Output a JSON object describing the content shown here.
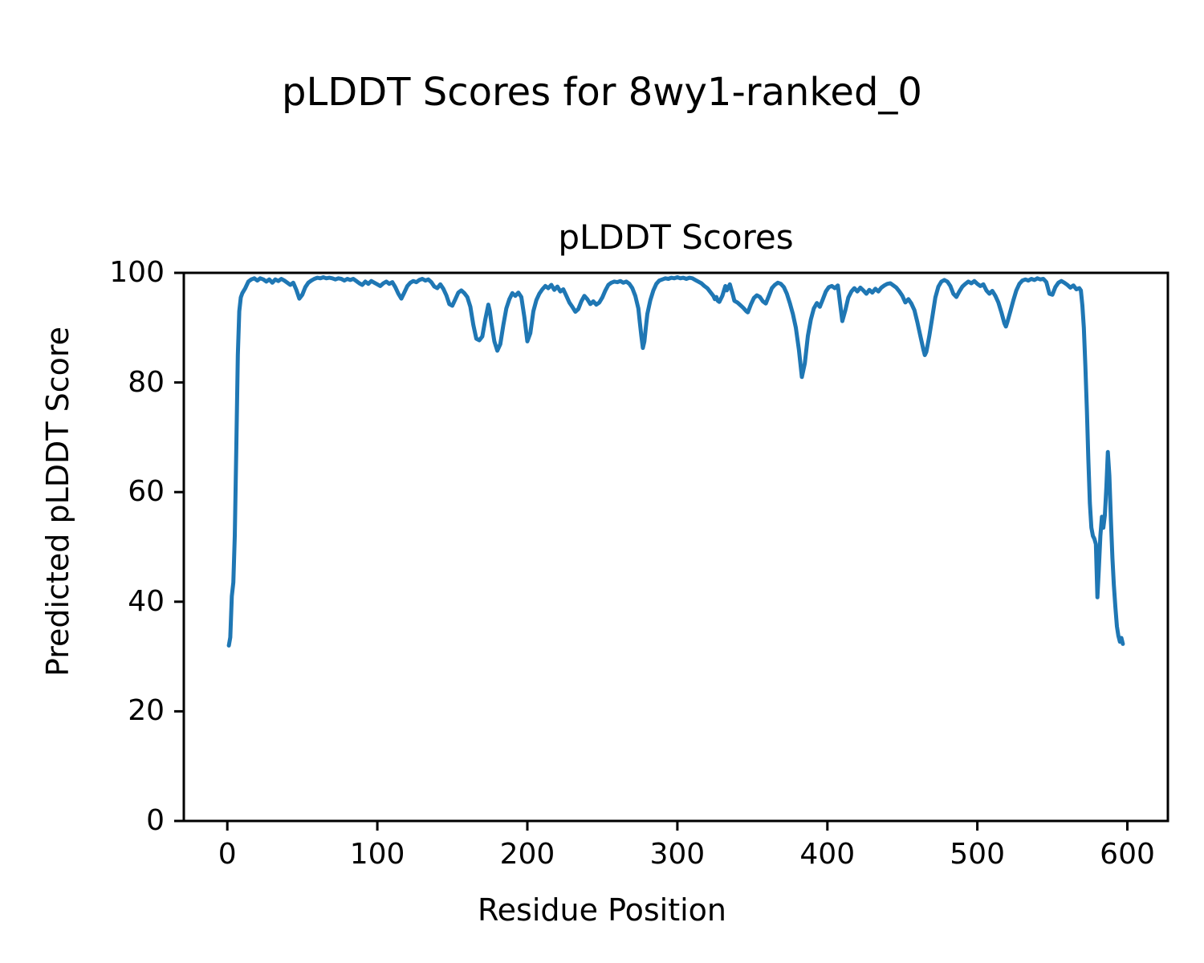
{
  "figure": {
    "suptitle": "pLDDT Scores for 8wy1-ranked_0",
    "axes_title": "pLDDT Scores",
    "xlabel": "Residue Position",
    "ylabel": "Predicted pLDDT Score"
  },
  "chart_data": {
    "type": "line",
    "title": "pLDDT Scores",
    "suptitle": "pLDDT Scores for 8wy1-ranked_0",
    "xlabel": "Residue Position",
    "ylabel": "Predicted pLDDT Score",
    "series_name": "pLDDT",
    "line_color": "#1f77b4",
    "axis_color": "#000000",
    "grid": false,
    "legend": null,
    "xlim": [
      -29,
      627
    ],
    "ylim": [
      0,
      100
    ],
    "x_ticks": [
      0,
      100,
      200,
      300,
      400,
      500,
      600
    ],
    "y_ticks": [
      0,
      20,
      40,
      60,
      80,
      100
    ],
    "points": [
      [
        1,
        32
      ],
      [
        2,
        33.5
      ],
      [
        3,
        41
      ],
      [
        4,
        43.5
      ],
      [
        5,
        52
      ],
      [
        6,
        68
      ],
      [
        7,
        85
      ],
      [
        8,
        93
      ],
      [
        9,
        95.5
      ],
      [
        10,
        96.3
      ],
      [
        12,
        97.2
      ],
      [
        14,
        98.4
      ],
      [
        16,
        98.8
      ],
      [
        18,
        99
      ],
      [
        20,
        98.6
      ],
      [
        22,
        99
      ],
      [
        24,
        98.8
      ],
      [
        26,
        98.4
      ],
      [
        28,
        98.8
      ],
      [
        30,
        98.2
      ],
      [
        32,
        98.8
      ],
      [
        34,
        98.5
      ],
      [
        36,
        98.9
      ],
      [
        38,
        98.6
      ],
      [
        40,
        98.2
      ],
      [
        42,
        97.8
      ],
      [
        44,
        98.2
      ],
      [
        46,
        96.9
      ],
      [
        48,
        95.3
      ],
      [
        50,
        96
      ],
      [
        52,
        97.4
      ],
      [
        54,
        98.2
      ],
      [
        56,
        98.6
      ],
      [
        58,
        98.9
      ],
      [
        60,
        99.1
      ],
      [
        62,
        99
      ],
      [
        64,
        99.2
      ],
      [
        66,
        99
      ],
      [
        68,
        99.1
      ],
      [
        70,
        99
      ],
      [
        72,
        98.8
      ],
      [
        74,
        99
      ],
      [
        76,
        98.9
      ],
      [
        78,
        98.6
      ],
      [
        80,
        98.9
      ],
      [
        82,
        98.7
      ],
      [
        84,
        98.9
      ],
      [
        86,
        98.5
      ],
      [
        88,
        98.1
      ],
      [
        90,
        97.8
      ],
      [
        92,
        98.4
      ],
      [
        94,
        98
      ],
      [
        96,
        98.5
      ],
      [
        98,
        98.2
      ],
      [
        100,
        97.9
      ],
      [
        102,
        97.6
      ],
      [
        104,
        98.1
      ],
      [
        106,
        98.4
      ],
      [
        108,
        98
      ],
      [
        110,
        98.3
      ],
      [
        112,
        97.4
      ],
      [
        114,
        96.2
      ],
      [
        116,
        95.3
      ],
      [
        118,
        96.4
      ],
      [
        120,
        97.6
      ],
      [
        122,
        98.2
      ],
      [
        124,
        98.5
      ],
      [
        126,
        98.3
      ],
      [
        128,
        98.7
      ],
      [
        130,
        98.9
      ],
      [
        132,
        98.6
      ],
      [
        134,
        98.8
      ],
      [
        136,
        98.3
      ],
      [
        138,
        97.5
      ],
      [
        140,
        97.2
      ],
      [
        142,
        97.9
      ],
      [
        144,
        97.1
      ],
      [
        146,
        95.9
      ],
      [
        148,
        94.3
      ],
      [
        150,
        94
      ],
      [
        152,
        95.2
      ],
      [
        154,
        96.4
      ],
      [
        156,
        96.8
      ],
      [
        158,
        96.3
      ],
      [
        160,
        95.6
      ],
      [
        162,
        93.8
      ],
      [
        164,
        90.5
      ],
      [
        166,
        88
      ],
      [
        168,
        87.7
      ],
      [
        170,
        88.4
      ],
      [
        172,
        91.5
      ],
      [
        174,
        94.2
      ],
      [
        175,
        93
      ],
      [
        176,
        91
      ],
      [
        178,
        87.5
      ],
      [
        180,
        85.8
      ],
      [
        182,
        87
      ],
      [
        184,
        90.5
      ],
      [
        186,
        93.5
      ],
      [
        188,
        95.2
      ],
      [
        190,
        96.3
      ],
      [
        192,
        95.8
      ],
      [
        194,
        96.4
      ],
      [
        196,
        95.6
      ],
      [
        198,
        92
      ],
      [
        200,
        87.5
      ],
      [
        202,
        89
      ],
      [
        204,
        93
      ],
      [
        206,
        95
      ],
      [
        208,
        96.2
      ],
      [
        210,
        97
      ],
      [
        212,
        97.6
      ],
      [
        214,
        97.2
      ],
      [
        216,
        97.8
      ],
      [
        218,
        96.9
      ],
      [
        220,
        97.5
      ],
      [
        222,
        96.6
      ],
      [
        224,
        97
      ],
      [
        226,
        95.8
      ],
      [
        228,
        94.6
      ],
      [
        230,
        93.8
      ],
      [
        232,
        92.9
      ],
      [
        234,
        93.4
      ],
      [
        236,
        94.8
      ],
      [
        238,
        95.8
      ],
      [
        240,
        95.2
      ],
      [
        242,
        94.3
      ],
      [
        244,
        94.8
      ],
      [
        246,
        94.2
      ],
      [
        248,
        94.6
      ],
      [
        250,
        95.5
      ],
      [
        252,
        96.8
      ],
      [
        254,
        97.8
      ],
      [
        256,
        98.2
      ],
      [
        258,
        98.4
      ],
      [
        260,
        98.3
      ],
      [
        262,
        98.5
      ],
      [
        264,
        98.2
      ],
      [
        266,
        98.4
      ],
      [
        268,
        98
      ],
      [
        270,
        97.2
      ],
      [
        272,
        95.8
      ],
      [
        274,
        93.5
      ],
      [
        275,
        91
      ],
      [
        276,
        88.5
      ],
      [
        277,
        86.3
      ],
      [
        278,
        87.5
      ],
      [
        279,
        90
      ],
      [
        280,
        92.5
      ],
      [
        282,
        95
      ],
      [
        284,
        96.8
      ],
      [
        286,
        98
      ],
      [
        288,
        98.6
      ],
      [
        290,
        98.8
      ],
      [
        292,
        99
      ],
      [
        294,
        98.9
      ],
      [
        296,
        99.1
      ],
      [
        298,
        99
      ],
      [
        300,
        99.2
      ],
      [
        302,
        99
      ],
      [
        304,
        99.1
      ],
      [
        306,
        98.9
      ],
      [
        308,
        99.1
      ],
      [
        310,
        99
      ],
      [
        312,
        98.7
      ],
      [
        314,
        98.4
      ],
      [
        316,
        98.1
      ],
      [
        318,
        97.6
      ],
      [
        320,
        97.2
      ],
      [
        322,
        96.5
      ],
      [
        324,
        95.8
      ],
      [
        325,
        95.2
      ],
      [
        326,
        95.6
      ],
      [
        327,
        94.9
      ],
      [
        328,
        94.7
      ],
      [
        330,
        95.8
      ],
      [
        332,
        97.6
      ],
      [
        333,
        96.8
      ],
      [
        335,
        97.9
      ],
      [
        337,
        96
      ],
      [
        338,
        94.9
      ],
      [
        340,
        94.6
      ],
      [
        342,
        94.1
      ],
      [
        344,
        93.6
      ],
      [
        346,
        93
      ],
      [
        347,
        92.8
      ],
      [
        349,
        94.2
      ],
      [
        351,
        95.4
      ],
      [
        353,
        95.9
      ],
      [
        355,
        95.6
      ],
      [
        357,
        94.8
      ],
      [
        359,
        94.4
      ],
      [
        361,
        95.8
      ],
      [
        363,
        97.2
      ],
      [
        365,
        97.8
      ],
      [
        367,
        98.2
      ],
      [
        369,
        98
      ],
      [
        371,
        97.4
      ],
      [
        373,
        96.2
      ],
      [
        375,
        94.5
      ],
      [
        377,
        92.5
      ],
      [
        379,
        90
      ],
      [
        381,
        86
      ],
      [
        383,
        81
      ],
      [
        385,
        83.5
      ],
      [
        387,
        88.5
      ],
      [
        389,
        91.5
      ],
      [
        391,
        93.5
      ],
      [
        393,
        94.5
      ],
      [
        395,
        93.8
      ],
      [
        397,
        95.2
      ],
      [
        399,
        96.6
      ],
      [
        401,
        97.4
      ],
      [
        403,
        97.6
      ],
      [
        405,
        97.2
      ],
      [
        407,
        97.7
      ],
      [
        408,
        95.5
      ],
      [
        410,
        91.2
      ],
      [
        412,
        93.2
      ],
      [
        414,
        95.5
      ],
      [
        416,
        96.6
      ],
      [
        418,
        97.2
      ],
      [
        420,
        96.6
      ],
      [
        422,
        97.3
      ],
      [
        424,
        96.8
      ],
      [
        426,
        96.2
      ],
      [
        428,
        96.9
      ],
      [
        430,
        96.4
      ],
      [
        432,
        97.1
      ],
      [
        434,
        96.6
      ],
      [
        436,
        97.3
      ],
      [
        438,
        97.7
      ],
      [
        440,
        98
      ],
      [
        442,
        98.1
      ],
      [
        444,
        97.7
      ],
      [
        446,
        97.3
      ],
      [
        448,
        96.6
      ],
      [
        450,
        95.8
      ],
      [
        452,
        94.6
      ],
      [
        454,
        95.2
      ],
      [
        456,
        94.4
      ],
      [
        458,
        93.2
      ],
      [
        460,
        91
      ],
      [
        462,
        88.5
      ],
      [
        464,
        86
      ],
      [
        465,
        85
      ],
      [
        466,
        85.6
      ],
      [
        468,
        88.5
      ],
      [
        470,
        92
      ],
      [
        472,
        95.5
      ],
      [
        474,
        97.5
      ],
      [
        476,
        98.4
      ],
      [
        478,
        98.7
      ],
      [
        480,
        98.4
      ],
      [
        482,
        97.6
      ],
      [
        484,
        96.2
      ],
      [
        486,
        95.6
      ],
      [
        488,
        96.6
      ],
      [
        490,
        97.5
      ],
      [
        492,
        98
      ],
      [
        494,
        98.4
      ],
      [
        496,
        98.1
      ],
      [
        498,
        98.5
      ],
      [
        500,
        98
      ],
      [
        502,
        97.6
      ],
      [
        504,
        97.9
      ],
      [
        506,
        96.8
      ],
      [
        508,
        96.2
      ],
      [
        510,
        96.7
      ],
      [
        512,
        95.8
      ],
      [
        514,
        94.6
      ],
      [
        516,
        92.8
      ],
      [
        518,
        90.8
      ],
      [
        519,
        90.2
      ],
      [
        520,
        91
      ],
      [
        522,
        93
      ],
      [
        524,
        95
      ],
      [
        526,
        96.8
      ],
      [
        528,
        98
      ],
      [
        530,
        98.6
      ],
      [
        532,
        98.8
      ],
      [
        534,
        98.6
      ],
      [
        536,
        98.9
      ],
      [
        538,
        98.7
      ],
      [
        540,
        99
      ],
      [
        542,
        98.8
      ],
      [
        544,
        98.9
      ],
      [
        546,
        98.3
      ],
      [
        548,
        96.2
      ],
      [
        550,
        96
      ],
      [
        552,
        97.4
      ],
      [
        554,
        98.2
      ],
      [
        556,
        98.5
      ],
      [
        558,
        98.2
      ],
      [
        560,
        97.8
      ],
      [
        562,
        97.3
      ],
      [
        564,
        97.7
      ],
      [
        566,
        97
      ],
      [
        568,
        97.2
      ],
      [
        569,
        96.8
      ],
      [
        570,
        94
      ],
      [
        571,
        90
      ],
      [
        572,
        83
      ],
      [
        573,
        75
      ],
      [
        574,
        66
      ],
      [
        575,
        58
      ],
      [
        576,
        53.5
      ],
      [
        577,
        52
      ],
      [
        578,
        51.5
      ],
      [
        579,
        50.5
      ],
      [
        580,
        40.8
      ],
      [
        581,
        46
      ],
      [
        582,
        52
      ],
      [
        583,
        55.5
      ],
      [
        584,
        53.5
      ],
      [
        585,
        55.8
      ],
      [
        586,
        61
      ],
      [
        587,
        67.3
      ],
      [
        588,
        63
      ],
      [
        589,
        55
      ],
      [
        590,
        48
      ],
      [
        591,
        43
      ],
      [
        592,
        39
      ],
      [
        593,
        35.5
      ],
      [
        594,
        33.8
      ],
      [
        595,
        32.7
      ],
      [
        596,
        33.4
      ],
      [
        597,
        32.3
      ]
    ]
  }
}
